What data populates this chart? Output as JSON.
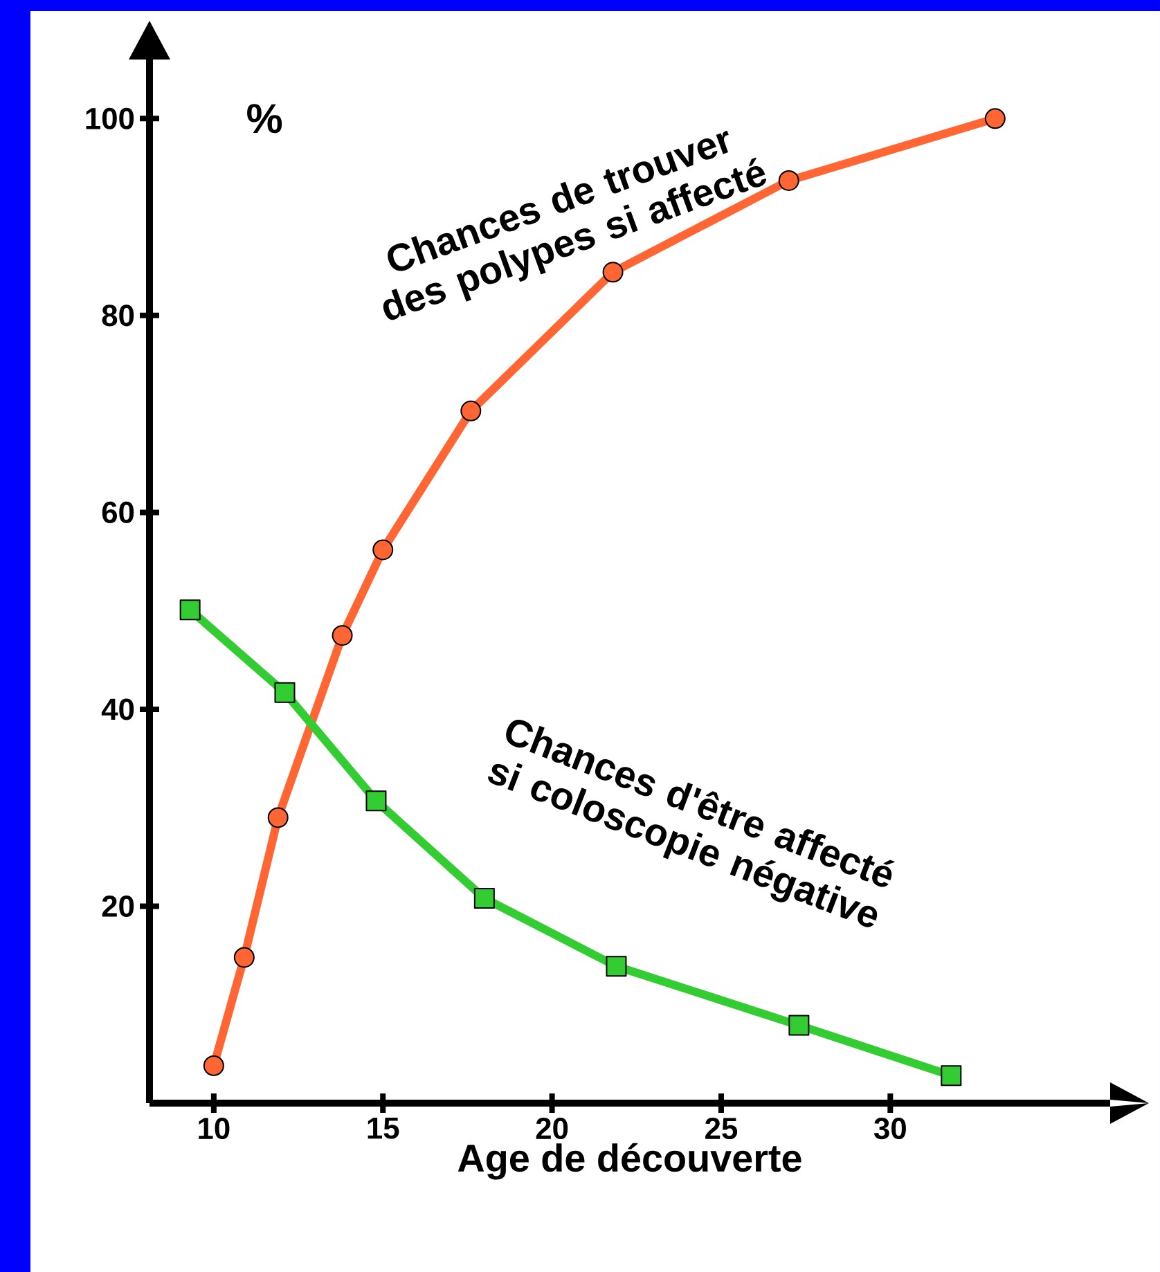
{
  "chart_data": {
    "type": "line",
    "xlabel": "Age de découverte",
    "ylabel": "%",
    "xlim": [
      8.1,
      36.5
    ],
    "ylim": [
      0,
      106
    ],
    "xticks": [
      10,
      15,
      20,
      25,
      30
    ],
    "yticks": [
      20,
      40,
      60,
      80,
      100
    ],
    "grid": false,
    "line_style": "solid",
    "series": [
      {
        "name": "Chances de trouver des polypes si affecté",
        "color": "#ff6633",
        "marker": "circle",
        "x": [
          10.0,
          10.9,
          11.9,
          13.8,
          15.0,
          17.6,
          21.8,
          27.0,
          33.1
        ],
        "values": [
          3.8,
          14.8,
          29,
          47.5,
          56.2,
          70.3,
          84.4,
          93.7,
          100
        ]
      },
      {
        "name": "Chances d'être affecté si coloscopie négative",
        "color": "#33cc33",
        "marker": "square",
        "x": [
          9.3,
          12.1,
          14.8,
          18.0,
          21.9,
          27.3,
          31.8
        ],
        "values": [
          50.1,
          41.7,
          30.7,
          20.8,
          13.9,
          7.9,
          2.8
        ]
      }
    ]
  }
}
